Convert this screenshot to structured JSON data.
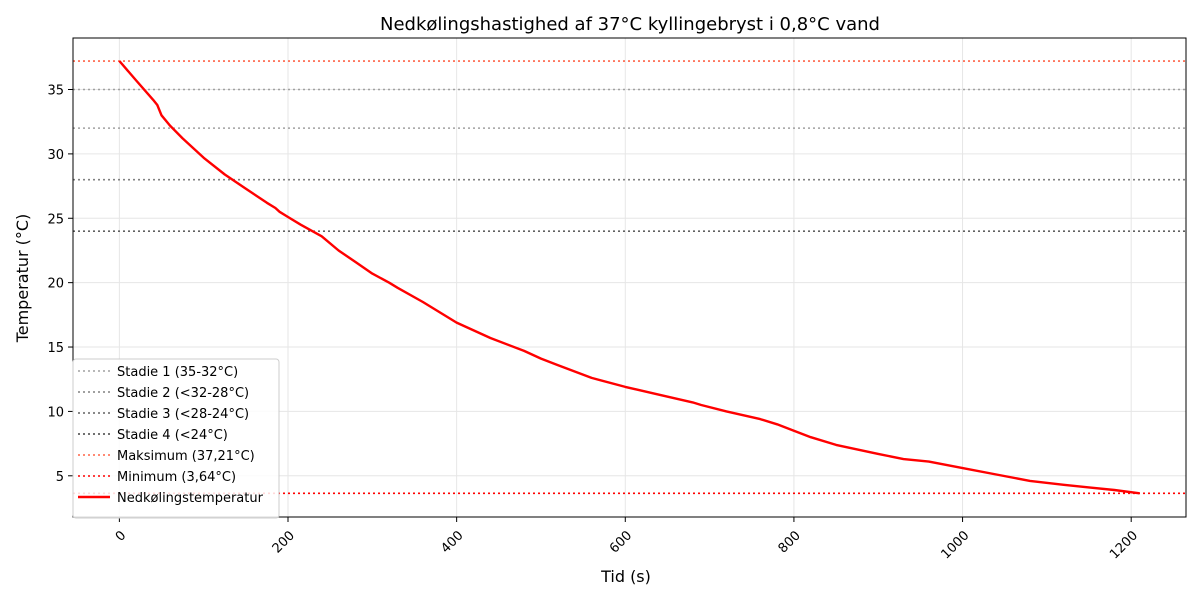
{
  "chart_data": {
    "type": "line",
    "title": "Nedkølingshastighed af 37°C kyllingebryst i 0,8°C vand",
    "xlabel": "Tid (s)",
    "ylabel": "Temperatur (°C)",
    "xlim": [
      -55,
      1265
    ],
    "ylim": [
      1.8,
      39.0
    ],
    "xticks": [
      0,
      200,
      400,
      600,
      800,
      1000,
      1200
    ],
    "xtick_labels": [
      "0",
      "200",
      "400",
      "600",
      "800",
      "1000",
      "1200"
    ],
    "yticks": [
      5,
      10,
      15,
      20,
      25,
      30,
      35
    ],
    "ytick_labels": [
      "5",
      "10",
      "15",
      "20",
      "25",
      "30",
      "35"
    ],
    "grid": true,
    "legend_position": "lower-left",
    "reference_lines": [
      {
        "name": "Stadie 1 (35-32°C)",
        "y": [
          35,
          32
        ],
        "color": "#a0a0a0",
        "style": "dotted"
      },
      {
        "name": "Stadie 2 (<32-28°C)",
        "y": [
          28
        ],
        "color": "#808080",
        "style": "dotted"
      },
      {
        "name": "Stadie 3 (<28-24°C)",
        "y": [
          24
        ],
        "color": "#606060",
        "style": "dotted"
      },
      {
        "name": "Stadie 4 (<24°C)",
        "y": [],
        "color": "#404040",
        "style": "dotted"
      },
      {
        "name": "Maksimum (37,21°C)",
        "y": [
          37.21
        ],
        "color": "#ff6347",
        "style": "dotted"
      },
      {
        "name": "Minimum (3,64°C)",
        "y": [
          3.64
        ],
        "color": "#ff0000",
        "style": "dotted"
      }
    ],
    "series": [
      {
        "name": "Nedkølingstemperatur",
        "color": "#ff0000",
        "x": [
          0,
          20,
          40,
          45,
          50,
          60,
          75,
          100,
          125,
          150,
          175,
          185,
          190,
          200,
          215,
          240,
          260,
          280,
          300,
          320,
          330,
          360,
          400,
          440,
          480,
          500,
          520,
          560,
          600,
          640,
          680,
          690,
          720,
          760,
          780,
          800,
          820,
          850,
          900,
          930,
          960,
          1000,
          1040,
          1080,
          1120,
          1150,
          1180,
          1210
        ],
        "y": [
          37.21,
          35.7,
          34.2,
          33.8,
          33.0,
          32.2,
          31.2,
          29.7,
          28.4,
          27.3,
          26.2,
          25.8,
          25.5,
          25.1,
          24.5,
          23.6,
          22.5,
          21.6,
          20.7,
          20.0,
          19.6,
          18.5,
          16.9,
          15.7,
          14.7,
          14.1,
          13.6,
          12.6,
          11.9,
          11.3,
          10.7,
          10.5,
          10.0,
          9.4,
          9.0,
          8.5,
          8.0,
          7.4,
          6.7,
          6.3,
          6.1,
          5.6,
          5.1,
          4.6,
          4.3,
          4.1,
          3.9,
          3.64
        ]
      }
    ]
  }
}
